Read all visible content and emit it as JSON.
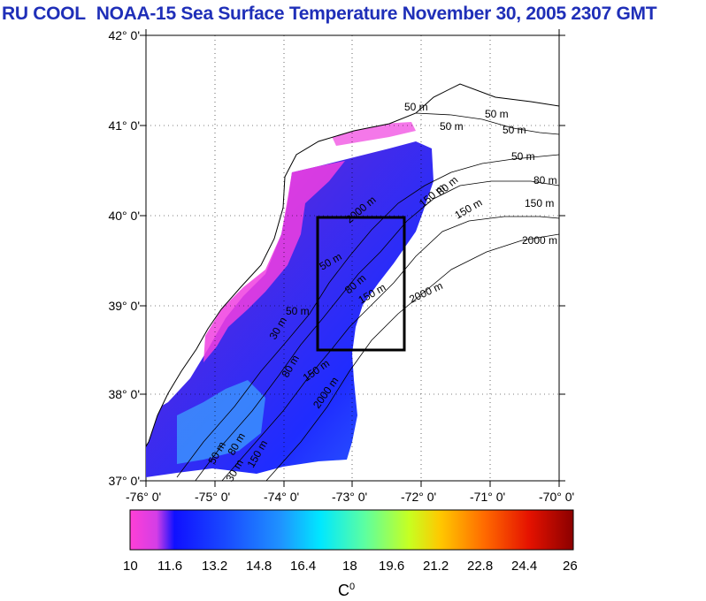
{
  "title": {
    "group": "RU COOL",
    "text": "NOAA-15 Sea Surface Temperature November 30, 2005 2307 GMT"
  },
  "map": {
    "lat_labels": [
      "42° 0'",
      "41° 0'",
      "40° 0'",
      "39° 0'",
      "38° 0'",
      "37° 0'"
    ],
    "lat_values": [
      42,
      41,
      40,
      39,
      38,
      37
    ],
    "lon_labels": [
      "-76° 0'",
      "-75° 0'",
      "-74° 0'",
      "-73° 0'",
      "-72° 0'",
      "-71° 0'",
      "-70° 0'"
    ],
    "lon_values": [
      -76,
      -75,
      -74,
      -73,
      -72,
      -71,
      -70
    ],
    "study_box": {
      "lon_min": -73.4,
      "lon_max": -72.4,
      "lat_min": 38.5,
      "lat_max": 40.0
    },
    "isobath_labels": [
      "50 m",
      "50 m",
      "50 m",
      "50 m",
      "50 m",
      "80 m",
      "150 m",
      "150 m",
      "2000 m",
      "50 m",
      "80 m",
      "150 m",
      "2000 m",
      "50 m",
      "30 m",
      "80 m",
      "150 m",
      "2000 m",
      "50 m",
      "80 m",
      "30 m",
      "150 m",
      "2000 m",
      "150 m",
      "80 m"
    ]
  },
  "colorbar": {
    "ticks": [
      "10",
      "11.6",
      "13.2",
      "14.8",
      "16.4",
      "18",
      "19.6",
      "21.2",
      "22.8",
      "24.4",
      "26"
    ],
    "min": 10,
    "max": 26,
    "unit_base": "C",
    "unit_sup": "0",
    "colors": [
      "#ff3fd6",
      "#c23ee8",
      "#1010ff",
      "#1a4cff",
      "#1f93ff",
      "#00e8ff",
      "#5dffa0",
      "#c7ff21",
      "#ffc800",
      "#ff6a00",
      "#e51200",
      "#8b0000"
    ]
  }
}
